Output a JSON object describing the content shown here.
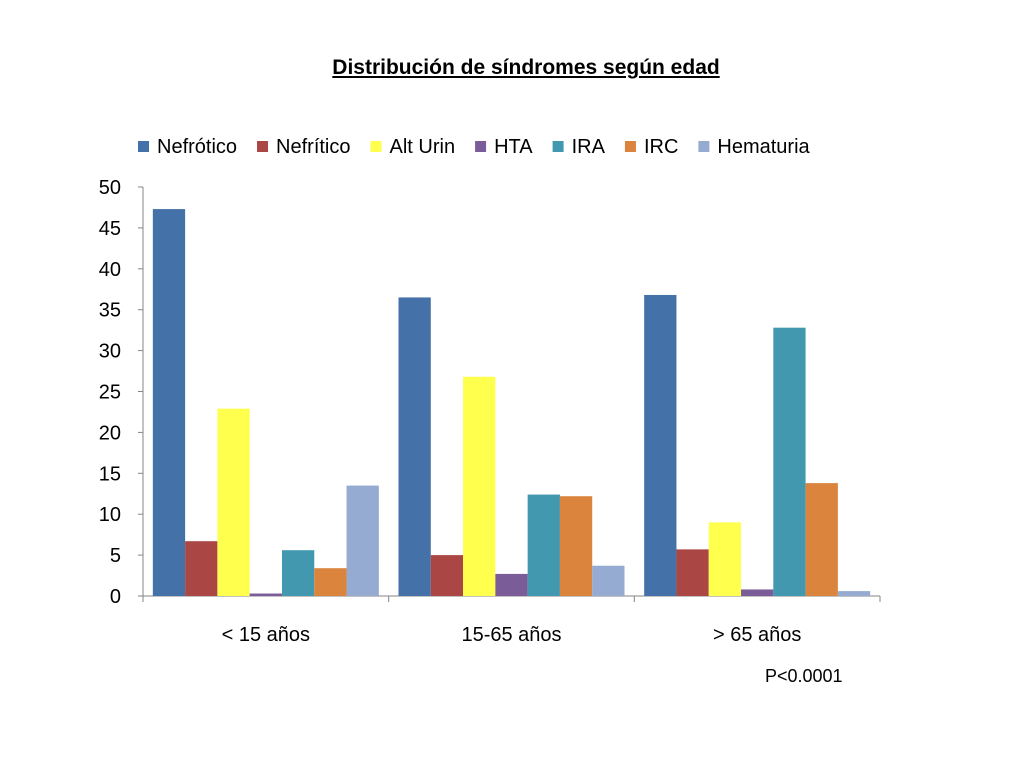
{
  "title": "Distribución de síndromes según edad",
  "annotation": "P<0.0001",
  "colors": {
    "Nefrótico": "#4472a8",
    "Nefrítico": "#aa4643",
    "Alt Urin": "#ffff4d",
    "HTA": "#7a5c99",
    "IRA": "#4198af",
    "IRC": "#db843d",
    "Hematuria": "#96abd2"
  },
  "chart_data": {
    "type": "bar",
    "title": "Distribución de síndromes según edad",
    "xlabel": "",
    "ylabel": "",
    "ylim": [
      0,
      50
    ],
    "yticks": [
      0,
      5,
      10,
      15,
      20,
      25,
      30,
      35,
      40,
      45,
      50
    ],
    "grid": false,
    "legend": "top",
    "categories": [
      "< 15 años",
      "15-65 años",
      "> 65 años"
    ],
    "series": [
      {
        "name": "Nefrótico",
        "values": [
          47.3,
          36.5,
          36.8
        ]
      },
      {
        "name": "Nefrítico",
        "values": [
          6.7,
          5.0,
          5.7
        ]
      },
      {
        "name": "Alt Urin",
        "values": [
          22.9,
          26.8,
          9.0
        ]
      },
      {
        "name": "HTA",
        "values": [
          0.3,
          2.7,
          0.8
        ]
      },
      {
        "name": "IRA",
        "values": [
          5.6,
          12.4,
          32.8
        ]
      },
      {
        "name": "IRC",
        "values": [
          3.4,
          12.2,
          13.8
        ]
      },
      {
        "name": "Hematuria",
        "values": [
          13.5,
          3.7,
          0.6
        ]
      }
    ],
    "annotation": "P<0.0001"
  }
}
